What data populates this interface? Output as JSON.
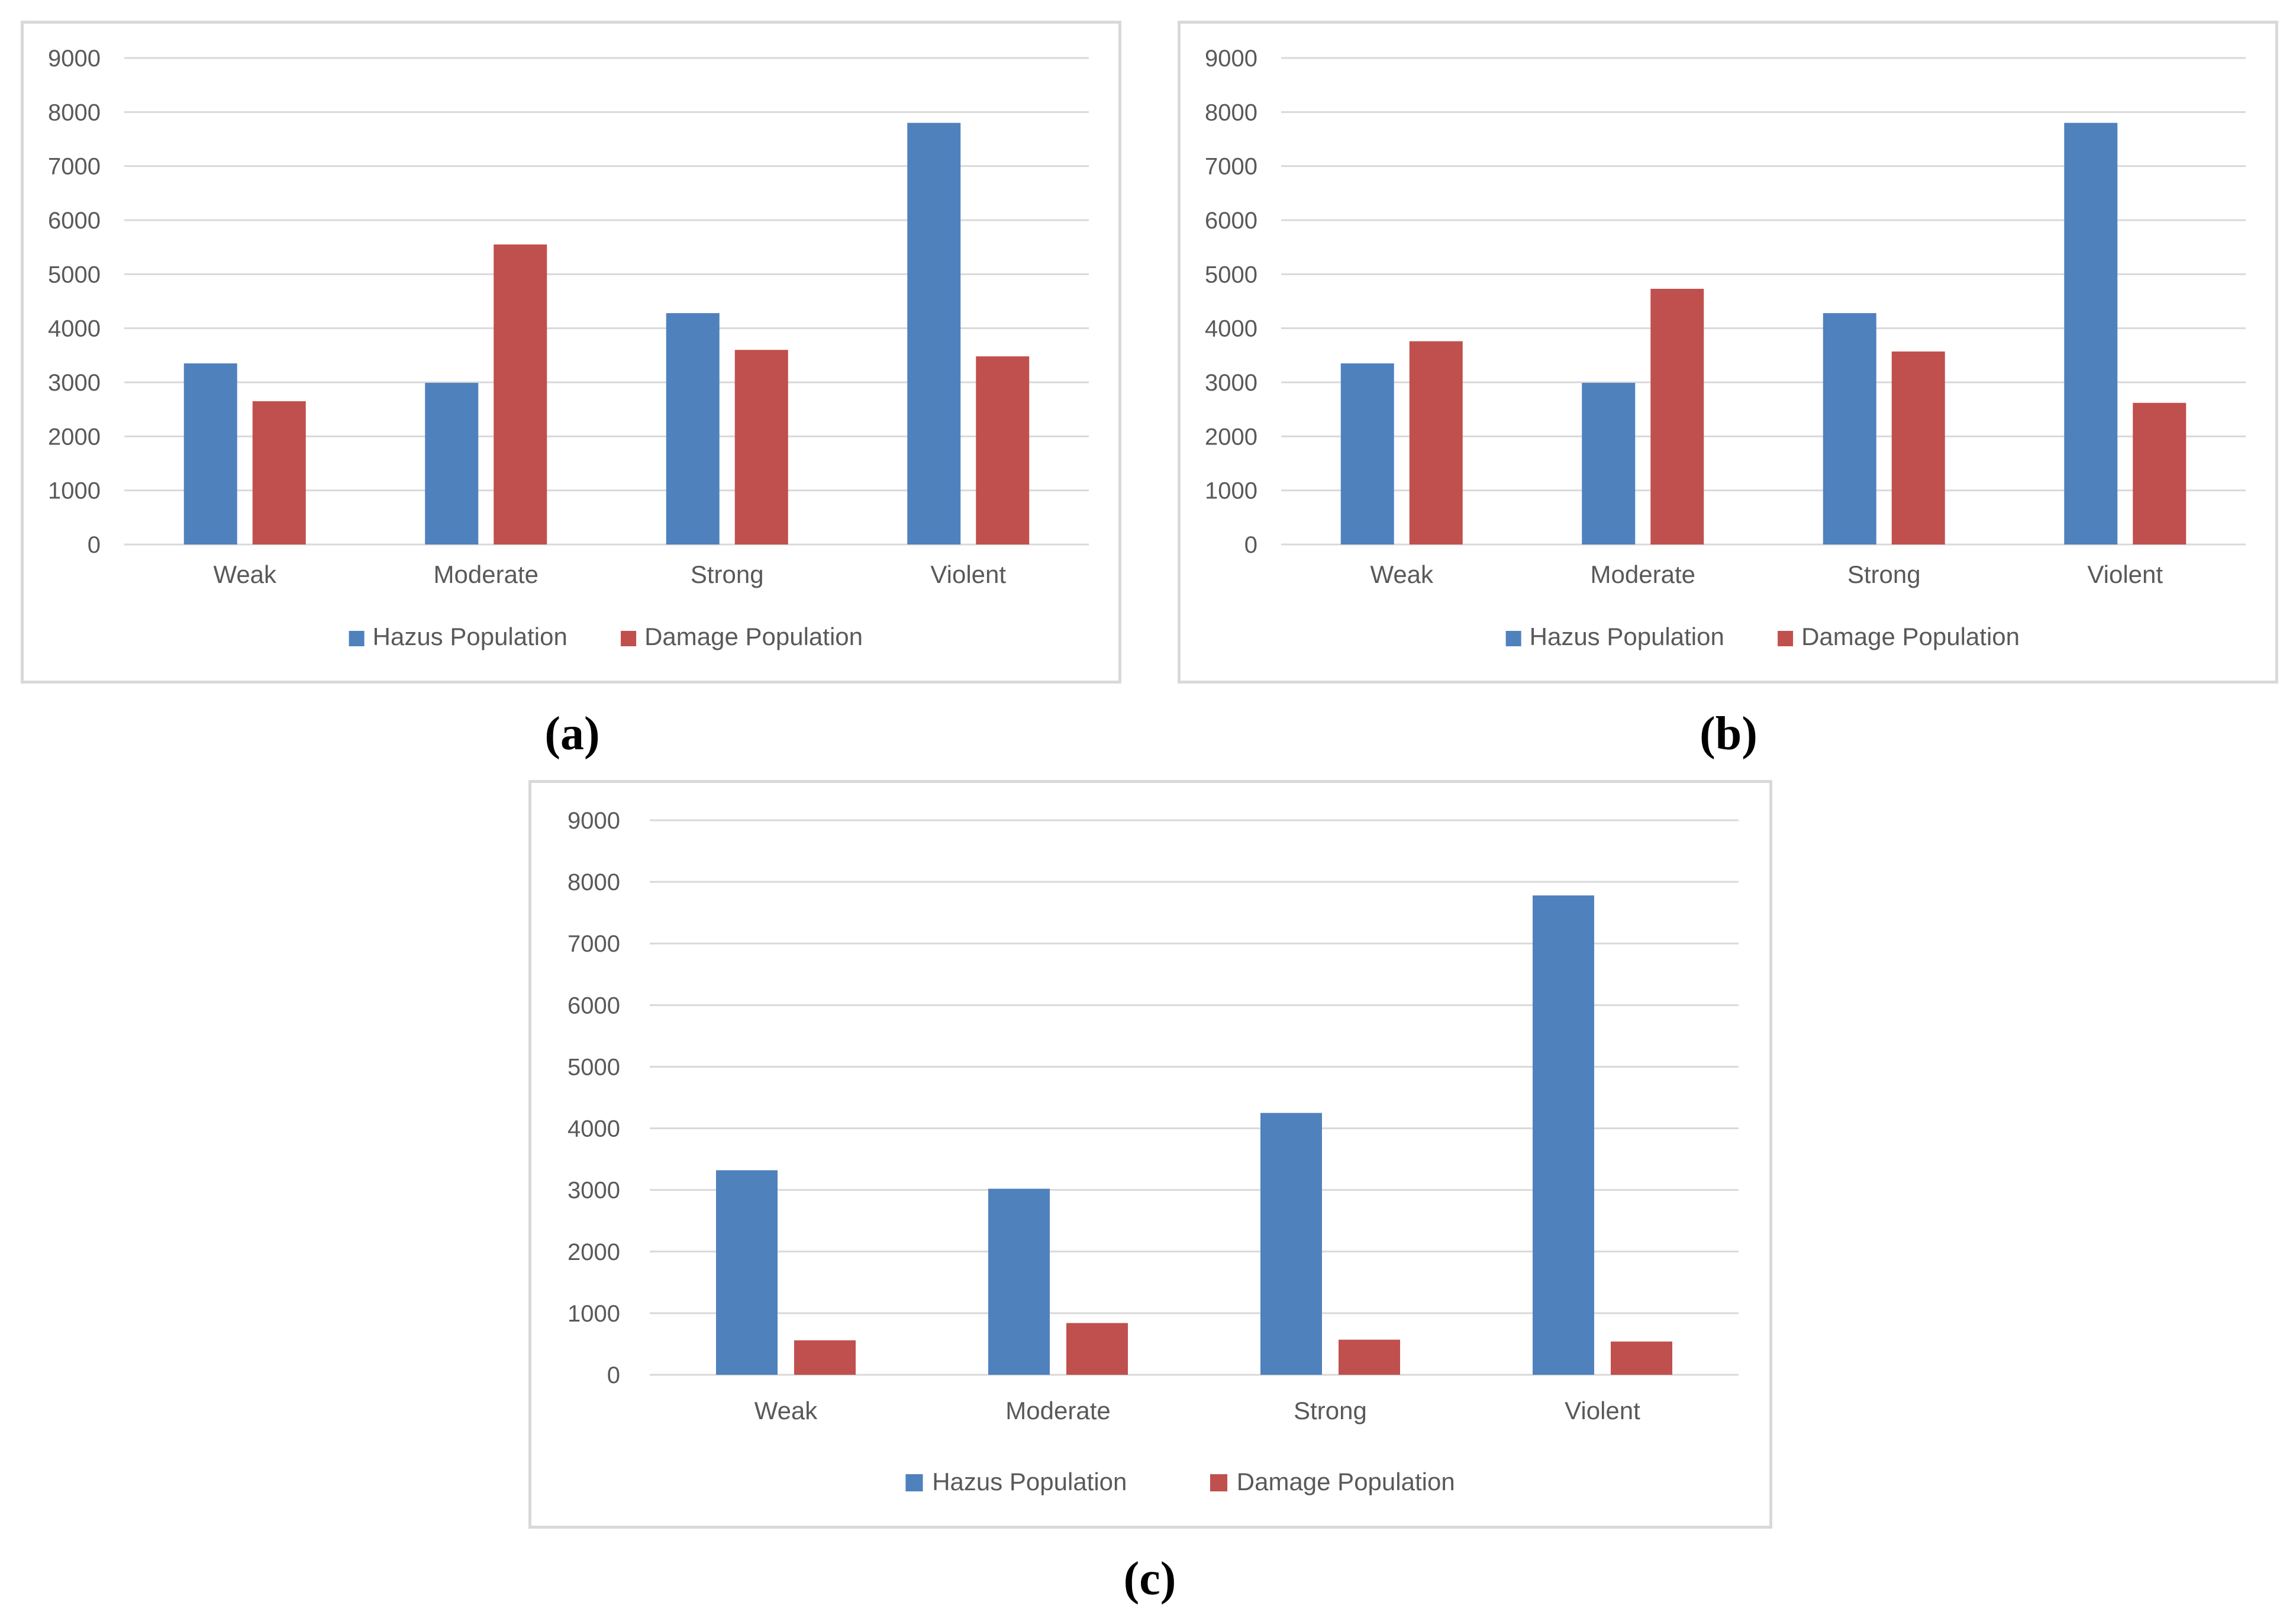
{
  "colors": {
    "hazus": "#4f81bd",
    "damage": "#c0504d",
    "grid": "#d9d9d9",
    "text": "#595959"
  },
  "chart_data": [
    {
      "panel": "(a)",
      "type": "bar",
      "categories": [
        "Weak",
        "Moderate",
        "Strong",
        "Violent"
      ],
      "series": [
        {
          "name": "Hazus Population",
          "values": [
            3350,
            2990,
            4280,
            7800
          ]
        },
        {
          "name": "Damage Population",
          "values": [
            2650,
            5550,
            3600,
            3480
          ]
        }
      ],
      "ylim": [
        0,
        9000
      ],
      "yticks": [
        "0",
        "1000",
        "2000",
        "3000",
        "4000",
        "5000",
        "6000",
        "7000",
        "8000",
        "9000"
      ],
      "legend": "bottom",
      "grid": true
    },
    {
      "panel": "(b)",
      "type": "bar",
      "categories": [
        "Weak",
        "Moderate",
        "Strong",
        "Violent"
      ],
      "series": [
        {
          "name": "Hazus Population",
          "values": [
            3350,
            2990,
            4280,
            7800
          ]
        },
        {
          "name": "Damage Population",
          "values": [
            3760,
            4730,
            3570,
            2620
          ]
        }
      ],
      "ylim": [
        0,
        9000
      ],
      "yticks": [
        "0",
        "1000",
        "2000",
        "3000",
        "4000",
        "5000",
        "6000",
        "7000",
        "8000",
        "9000"
      ],
      "legend": "bottom",
      "grid": true
    },
    {
      "panel": "(c)",
      "type": "bar",
      "categories": [
        "Weak",
        "Moderate",
        "Strong",
        "Violent"
      ],
      "series": [
        {
          "name": "Hazus Population",
          "values": [
            3320,
            3020,
            4250,
            7780
          ]
        },
        {
          "name": "Damage Population",
          "values": [
            560,
            840,
            570,
            540
          ]
        }
      ],
      "ylim": [
        0,
        9000
      ],
      "yticks": [
        "0",
        "1000",
        "2000",
        "3000",
        "4000",
        "5000",
        "6000",
        "7000",
        "8000",
        "9000"
      ],
      "legend": "bottom",
      "grid": true
    }
  ]
}
